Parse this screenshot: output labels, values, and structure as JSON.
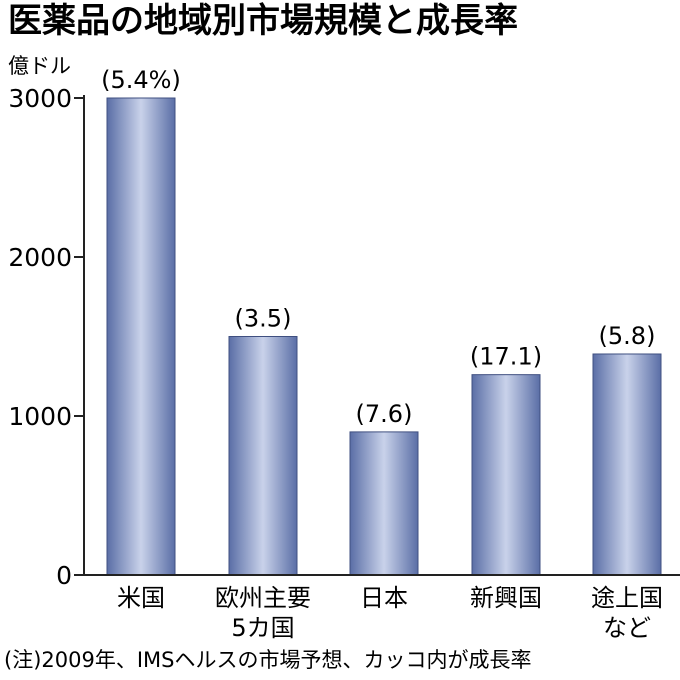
{
  "chart_data": {
    "type": "bar",
    "title": "医薬品の地域別市場規模と成長率",
    "ylabel": "億ドル",
    "categories": [
      [
        "米国"
      ],
      [
        "欧州主要",
        "5カ国"
      ],
      [
        "日本"
      ],
      [
        "新興国"
      ],
      [
        "途上国",
        "など"
      ]
    ],
    "values": [
      3000,
      1500,
      900,
      1260,
      1390
    ],
    "data_labels": [
      "(5.4%)",
      "(3.5)",
      "(7.6)",
      "(17.1)",
      "(5.8)"
    ],
    "ylim": [
      0,
      3000
    ],
    "yticks": [
      0,
      1000,
      2000,
      3000
    ],
    "ytick_labels": [
      "0",
      "1000",
      "2000",
      "3000"
    ],
    "note": "(注)2009年、IMSヘルスの市場予想、カッコ内が成長率",
    "grid": false,
    "colors": {
      "bar_dark": "#5a6ea6",
      "bar_light": "#c9d2ea",
      "axis": "#222222"
    }
  }
}
